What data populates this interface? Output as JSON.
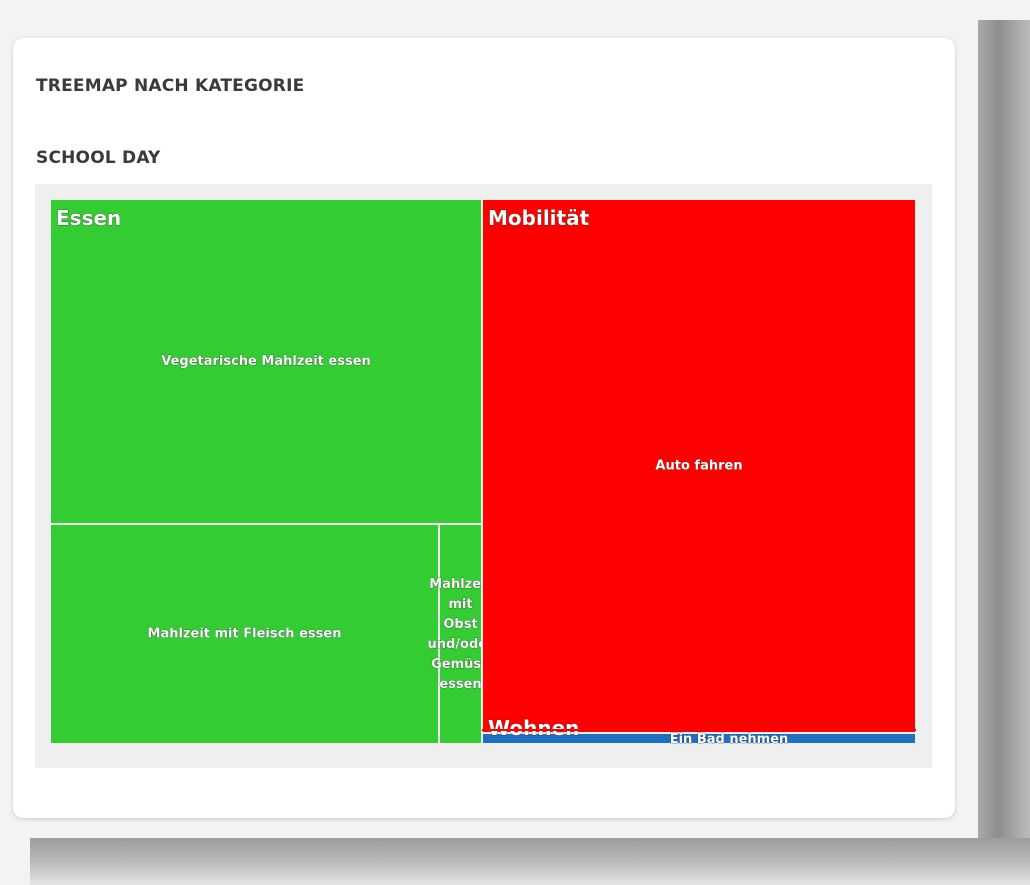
{
  "card": {
    "title": "TREEMAP NACH KATEGORIE"
  },
  "chart_data": {
    "type": "treemap",
    "title": "SCHOOL DAY",
    "categories": [
      {
        "name": "Essen",
        "color": "#33cc33",
        "children": [
          {
            "name": "Vegetarische Mahlzeit essen",
            "value": 24.0
          },
          {
            "name": "Mahlzeit mit Fleisch essen",
            "value": 14.6
          },
          {
            "name": "Mahlzeit mit Obst und/oder Gemüse essen",
            "value": 1.6
          }
        ]
      },
      {
        "name": "Mobilität",
        "color": "#ff0000",
        "children": [
          {
            "name": "Auto fahren",
            "value": 39.5
          }
        ]
      },
      {
        "name": "Wohnen",
        "color": "#1e6fbf",
        "children": [
          {
            "name": "Ein Bad nehmen",
            "value": 0.8
          }
        ]
      }
    ]
  }
}
